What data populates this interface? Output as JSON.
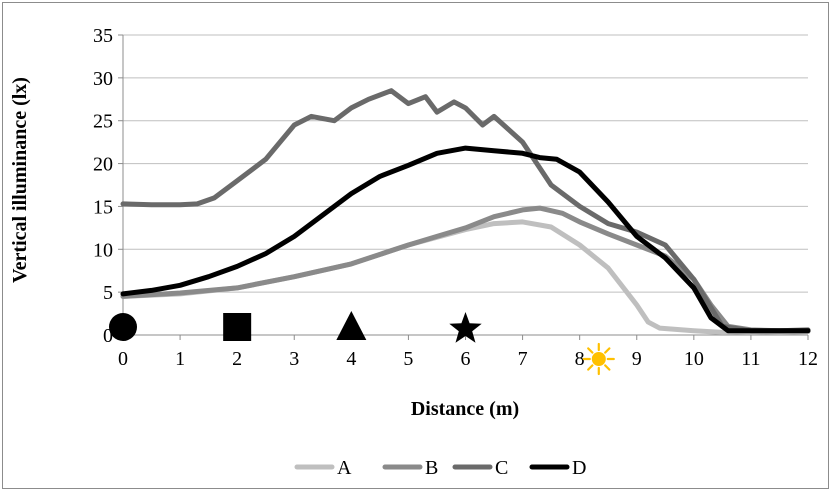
{
  "chart_data": {
    "type": "line",
    "title": "",
    "xlabel": "Distance (m)",
    "ylabel": "Vertical illuminance (lx)",
    "xlim": [
      0,
      12
    ],
    "ylim": [
      0,
      35
    ],
    "x_ticks": [
      "0",
      "1",
      "2",
      "3",
      "4",
      "5",
      "6",
      "7",
      "8",
      "9",
      "10",
      "11",
      "12"
    ],
    "y_ticks": [
      "0",
      "5",
      "10",
      "15",
      "20",
      "25",
      "30",
      "35"
    ],
    "grid": "horizontal",
    "legend_position": "bottom",
    "markers": [
      {
        "shape": "circle",
        "x": 0
      },
      {
        "shape": "square",
        "x": 2
      },
      {
        "shape": "triangle",
        "x": 4
      },
      {
        "shape": "star",
        "x": 6
      },
      {
        "shape": "sun",
        "x": 8.3
      }
    ],
    "series": [
      {
        "name": "A",
        "color": "#bfbfbf",
        "x": [
          0,
          1,
          2,
          3,
          4,
          5,
          6,
          6.5,
          7,
          7.5,
          8,
          8.5,
          9,
          9.2,
          9.4,
          10,
          10.5,
          11,
          11.5,
          12
        ],
        "y": [
          4.5,
          4.8,
          5.5,
          6.8,
          8.3,
          10.5,
          12.3,
          13,
          13.2,
          12.6,
          10.5,
          7.8,
          3.5,
          1.5,
          0.8,
          0.5,
          0.3,
          0.4,
          0.3,
          0.4
        ]
      },
      {
        "name": "B",
        "color": "#8a8a8a",
        "x": [
          0,
          1,
          2,
          3,
          4,
          5,
          5.5,
          6,
          6.5,
          7,
          7.3,
          7.7,
          8,
          8.5,
          9,
          9.5,
          10,
          10.3,
          10.6,
          11,
          11.5,
          12
        ],
        "y": [
          4.5,
          4.9,
          5.5,
          6.8,
          8.3,
          10.5,
          11.5,
          12.5,
          13.8,
          14.6,
          14.8,
          14.2,
          13.2,
          11.8,
          10.5,
          9.2,
          6.5,
          3.5,
          1,
          0.6,
          0.5,
          0.5
        ]
      },
      {
        "name": "C",
        "color": "#6a6a6a",
        "x": [
          0,
          0.5,
          1,
          1.3,
          1.6,
          2,
          2.5,
          3,
          3.3,
          3.7,
          4,
          4.3,
          4.7,
          5,
          5.3,
          5.5,
          5.8,
          6,
          6.3,
          6.5,
          7,
          7.5,
          8,
          8.5,
          9,
          9.5,
          10,
          10.5,
          11,
          11.5,
          12
        ],
        "y": [
          15.3,
          15.2,
          15.2,
          15.3,
          16,
          18,
          20.5,
          24.5,
          25.5,
          25,
          26.5,
          27.5,
          28.5,
          27,
          27.8,
          26,
          27.2,
          26.5,
          24.5,
          25.5,
          22.5,
          17.5,
          15,
          13,
          12,
          10.5,
          6.5,
          1,
          0.5,
          0.5,
          0.6
        ]
      },
      {
        "name": "D",
        "color": "#000000",
        "x": [
          0,
          0.5,
          1,
          1.5,
          2,
          2.5,
          3,
          3.5,
          4,
          4.5,
          5,
          5.5,
          6,
          6.5,
          7,
          7.3,
          7.6,
          8,
          8.5,
          9,
          9.5,
          10,
          10.3,
          10.6,
          11,
          11.5,
          12
        ],
        "y": [
          4.8,
          5.2,
          5.8,
          6.8,
          8,
          9.5,
          11.5,
          14,
          16.5,
          18.5,
          19.8,
          21.2,
          21.8,
          21.5,
          21.2,
          20.7,
          20.5,
          19,
          15.5,
          11.5,
          9,
          5.5,
          2,
          0.5,
          0.5,
          0.5,
          0.5
        ]
      }
    ]
  }
}
